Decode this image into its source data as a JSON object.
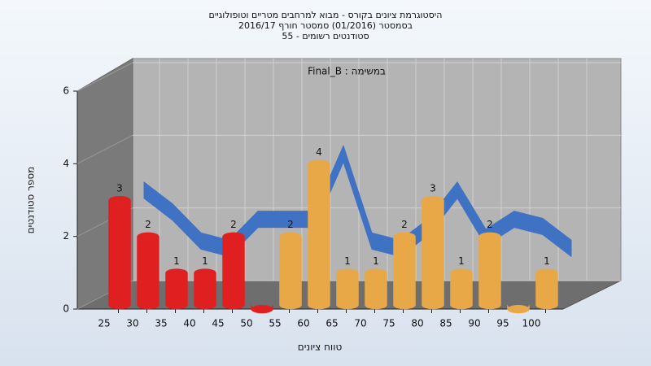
{
  "chart_data": {
    "type": "bar",
    "title": [
      "היסטוגרמת ציונים בקורס - מבוא למרחבים מטריים וטופולוגיים",
      "בסמסטר (01/2016)  סמסטר חורף 2016/17",
      "סטודנטים רשומים - 55"
    ],
    "annotation": "Final_B : במשימה",
    "x_label": "טווח ציונים",
    "y_label": "מספר סטודנטים",
    "categories": [
      "25",
      "30",
      "35",
      "40",
      "45",
      "50",
      "55",
      "60",
      "65",
      "70",
      "75",
      "80",
      "85",
      "90",
      "95",
      "100"
    ],
    "series": [
      {
        "type": "bar",
        "values": [
          3,
          2,
          1,
          1,
          2,
          0,
          2,
          4,
          1,
          1,
          2,
          3,
          1,
          2,
          0,
          1
        ],
        "colors": [
          "#e02020",
          "#e02020",
          "#e02020",
          "#e02020",
          "#e02020",
          "#e02020",
          "#e8a848",
          "#e8a848",
          "#e8a848",
          "#e8a848",
          "#e8a848",
          "#e8a848",
          "#e8a848",
          "#e8a848",
          "#e8a848",
          "#e8a848"
        ]
      },
      {
        "type": "line",
        "color": "#3a6fc4",
        "values": [
          2.6,
          2.0,
          1.2,
          1.0,
          1.8,
          1.8,
          1.8,
          3.6,
          1.2,
          1.0,
          1.6,
          2.6,
          1.3,
          1.8,
          1.6,
          1.0
        ]
      }
    ],
    "ylim": [
      0,
      6
    ],
    "yticks": [
      0,
      2,
      4,
      6
    ],
    "grid": true
  }
}
